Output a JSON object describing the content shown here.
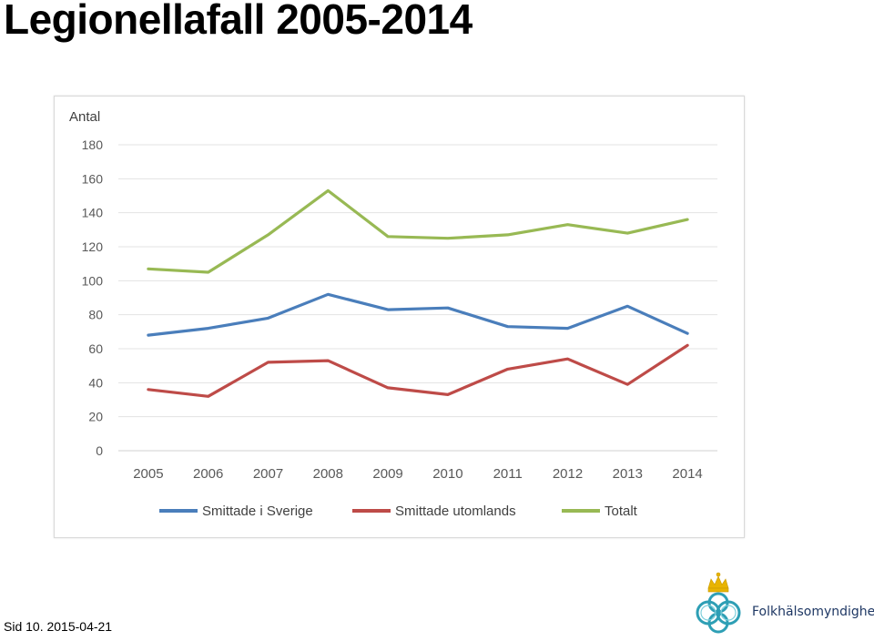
{
  "page": {
    "title": "Legionellafall 2005-2014",
    "footer": {
      "page_label": "Sid 10.",
      "date": "2015-04-21"
    },
    "logo": {
      "name": "Folkhälsomyndigheten",
      "icon": "crown-knot-emblem-icon"
    }
  },
  "chart_data": {
    "type": "line",
    "title": "",
    "ylabel": "Antal",
    "xlabel": "",
    "ylim": [
      0,
      180
    ],
    "yticks": [
      0,
      20,
      40,
      60,
      80,
      100,
      120,
      140,
      160,
      180
    ],
    "grid": true,
    "legend_position": "bottom",
    "categories": [
      "2005",
      "2006",
      "2007",
      "2008",
      "2009",
      "2010",
      "2011",
      "2012",
      "2013",
      "2014"
    ],
    "series": [
      {
        "name": "Smittade i Sverige",
        "color": "#4a7ebb",
        "values": [
          68,
          72,
          78,
          92,
          83,
          84,
          73,
          72,
          85,
          69
        ]
      },
      {
        "name": "Smittade utomlands",
        "color": "#be4b48",
        "values": [
          36,
          32,
          52,
          53,
          37,
          33,
          48,
          54,
          39,
          62
        ]
      },
      {
        "name": "Totalt",
        "color": "#98b954",
        "values": [
          107,
          105,
          127,
          153,
          126,
          125,
          127,
          133,
          128,
          136
        ]
      }
    ]
  }
}
